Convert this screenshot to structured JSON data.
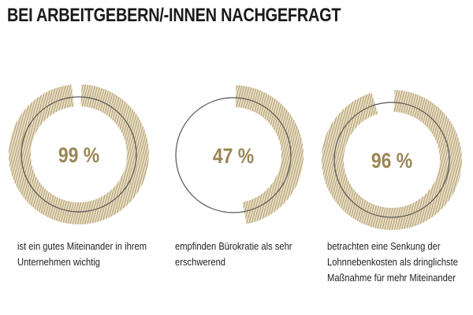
{
  "header": {
    "title": "BEI ARBEITGEBERN/-INNEN NACHGEFRAGT"
  },
  "colors": {
    "accent": "#9a8553",
    "hatch": "#c9b994",
    "ring_line": "#555555",
    "text": "#222222"
  },
  "chart_data": {
    "type": "pie",
    "title": "BEI ARBEITGEBERN/-INNEN NACHGEFRAGT",
    "series": [
      {
        "name": "Miteinander wichtig",
        "value": 99,
        "label": "99 %",
        "caption": [
          "ist ein gutes Miteinander in ihrem",
          "Unternehmen wichtig"
        ]
      },
      {
        "name": "Bürokratie erschwerend",
        "value": 47,
        "label": "47 %",
        "caption": [
          "empfinden Bürokratie als sehr",
          "erschwerend"
        ]
      },
      {
        "name": "Senkung Lohnnebenkosten",
        "value": 96,
        "label": "96 %",
        "caption": [
          "betrachten eine Senkung der",
          "Lohnnebenkosten als dringlichste",
          "Maßnahme für mehr Miteinander"
        ]
      }
    ],
    "unit": "%",
    "max": 100
  }
}
